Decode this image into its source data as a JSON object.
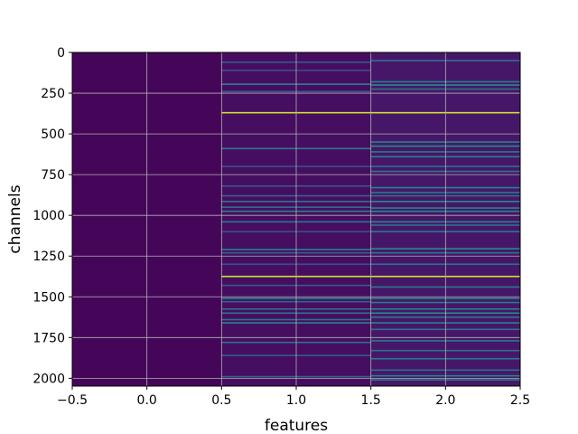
{
  "chart_data": {
    "type": "heatmap",
    "title": "",
    "xlabel": "features",
    "ylabel": "channels",
    "xlim": [
      -0.5,
      2.5
    ],
    "ylim": [
      2048,
      0
    ],
    "y_inverted": true,
    "grid": true,
    "colormap": "viridis",
    "x_ticks": [
      {
        "value": -0.5,
        "label": "−0.5"
      },
      {
        "value": 0.0,
        "label": "0.0"
      },
      {
        "value": 0.5,
        "label": "0.5"
      },
      {
        "value": 1.0,
        "label": "1.0"
      },
      {
        "value": 1.5,
        "label": "1.5"
      },
      {
        "value": 2.0,
        "label": "2.0"
      },
      {
        "value": 2.5,
        "label": "2.5"
      }
    ],
    "y_ticks": [
      {
        "value": 0,
        "label": "0"
      },
      {
        "value": 250,
        "label": "250"
      },
      {
        "value": 500,
        "label": "500"
      },
      {
        "value": 750,
        "label": "750"
      },
      {
        "value": 1000,
        "label": "1000"
      },
      {
        "value": 1250,
        "label": "1250"
      },
      {
        "value": 1500,
        "label": "1500"
      },
      {
        "value": 1750,
        "label": "1750"
      },
      {
        "value": 2000,
        "label": "2000"
      }
    ],
    "columns": [
      {
        "feature": 0,
        "background": 0.02,
        "bright_rows": []
      },
      {
        "feature": 1,
        "background": 0.05,
        "bright_rows": [
          {
            "channel": 60,
            "value": 0.35
          },
          {
            "channel": 110,
            "value": 0.3
          },
          {
            "channel": 195,
            "value": 0.55
          },
          {
            "channel": 240,
            "value": 0.35
          },
          {
            "channel": 370,
            "value": 0.95
          },
          {
            "channel": 590,
            "value": 0.5
          },
          {
            "channel": 700,
            "value": 0.3
          },
          {
            "channel": 820,
            "value": 0.35
          },
          {
            "channel": 880,
            "value": 0.4
          },
          {
            "channel": 915,
            "value": 0.5
          },
          {
            "channel": 950,
            "value": 0.45
          },
          {
            "channel": 975,
            "value": 0.55
          },
          {
            "channel": 1040,
            "value": 0.5
          },
          {
            "channel": 1100,
            "value": 0.3
          },
          {
            "channel": 1210,
            "value": 0.55
          },
          {
            "channel": 1230,
            "value": 0.4
          },
          {
            "channel": 1300,
            "value": 0.3
          },
          {
            "channel": 1375,
            "value": 0.95
          },
          {
            "channel": 1430,
            "value": 0.35
          },
          {
            "channel": 1510,
            "value": 0.55
          },
          {
            "channel": 1530,
            "value": 0.4
          },
          {
            "channel": 1575,
            "value": 0.45
          },
          {
            "channel": 1600,
            "value": 0.5
          },
          {
            "channel": 1640,
            "value": 0.45
          },
          {
            "channel": 1660,
            "value": 0.55
          },
          {
            "channel": 1780,
            "value": 0.45
          },
          {
            "channel": 1860,
            "value": 0.35
          },
          {
            "channel": 1990,
            "value": 0.4
          }
        ]
      },
      {
        "feature": 2,
        "background": 0.08,
        "bright_rows": [
          {
            "channel": 50,
            "value": 0.45
          },
          {
            "channel": 180,
            "value": 0.55
          },
          {
            "channel": 200,
            "value": 0.6
          },
          {
            "channel": 225,
            "value": 0.45
          },
          {
            "channel": 370,
            "value": 0.95
          },
          {
            "channel": 550,
            "value": 0.55
          },
          {
            "channel": 575,
            "value": 0.6
          },
          {
            "channel": 610,
            "value": 0.5
          },
          {
            "channel": 640,
            "value": 0.55
          },
          {
            "channel": 700,
            "value": 0.45
          },
          {
            "channel": 730,
            "value": 0.5
          },
          {
            "channel": 830,
            "value": 0.55
          },
          {
            "channel": 860,
            "value": 0.5
          },
          {
            "channel": 880,
            "value": 0.45
          },
          {
            "channel": 915,
            "value": 0.6
          },
          {
            "channel": 955,
            "value": 0.55
          },
          {
            "channel": 975,
            "value": 0.6
          },
          {
            "channel": 1040,
            "value": 0.55
          },
          {
            "channel": 1060,
            "value": 0.45
          },
          {
            "channel": 1100,
            "value": 0.5
          },
          {
            "channel": 1205,
            "value": 0.6
          },
          {
            "channel": 1230,
            "value": 0.5
          },
          {
            "channel": 1300,
            "value": 0.45
          },
          {
            "channel": 1375,
            "value": 0.95
          },
          {
            "channel": 1440,
            "value": 0.5
          },
          {
            "channel": 1510,
            "value": 0.55
          },
          {
            "channel": 1535,
            "value": 0.5
          },
          {
            "channel": 1575,
            "value": 0.55
          },
          {
            "channel": 1600,
            "value": 0.6
          },
          {
            "channel": 1625,
            "value": 0.5
          },
          {
            "channel": 1660,
            "value": 0.55
          },
          {
            "channel": 1700,
            "value": 0.45
          },
          {
            "channel": 1770,
            "value": 0.5
          },
          {
            "channel": 1830,
            "value": 0.45
          },
          {
            "channel": 1880,
            "value": 0.5
          },
          {
            "channel": 1950,
            "value": 0.45
          },
          {
            "channel": 1985,
            "value": 0.55
          },
          {
            "channel": 2010,
            "value": 0.5
          }
        ]
      }
    ]
  }
}
